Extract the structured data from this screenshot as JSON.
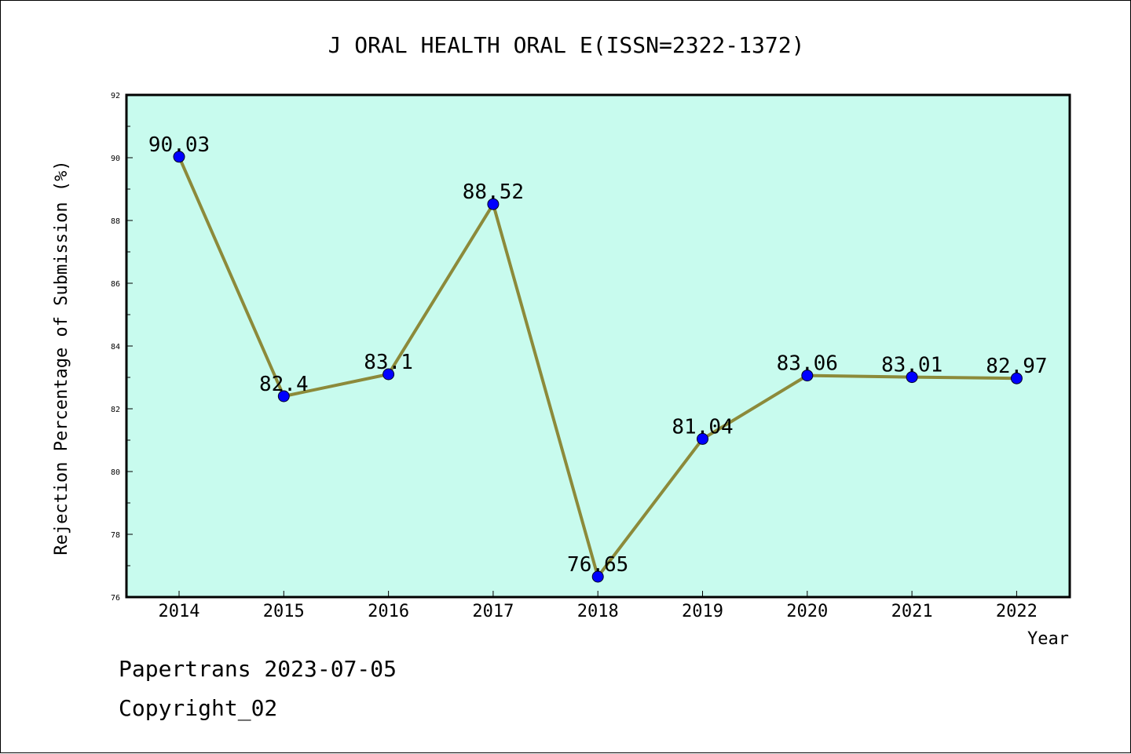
{
  "chart_data": {
    "type": "line",
    "title": "J ORAL HEALTH ORAL E(ISSN=2322-1372)",
    "xlabel": "Year",
    "ylabel": "Rejection Percentage of Submission (%)",
    "categories": [
      "2014",
      "2015",
      "2016",
      "2017",
      "2018",
      "2019",
      "2020",
      "2021",
      "2022"
    ],
    "values": [
      90.03,
      82.4,
      83.1,
      88.52,
      76.65,
      81.04,
      83.06,
      83.01,
      82.97
    ],
    "data_labels": [
      "90.03",
      "82.4",
      "83.1",
      "88.52",
      "76.65",
      "81.04",
      "83.06",
      "83.01",
      "82.97"
    ],
    "ylim": [
      76,
      92
    ],
    "yticks": [
      76,
      78,
      80,
      82,
      84,
      86,
      88,
      90,
      92
    ],
    "grid": false,
    "legend": "none",
    "colors": {
      "plot_background": "#c8fbee",
      "line": "#8c8a3a",
      "marker": "#0000ff"
    }
  },
  "footer": {
    "line1": "Papertrans 2023-07-05",
    "line2": "Copyright_02"
  }
}
